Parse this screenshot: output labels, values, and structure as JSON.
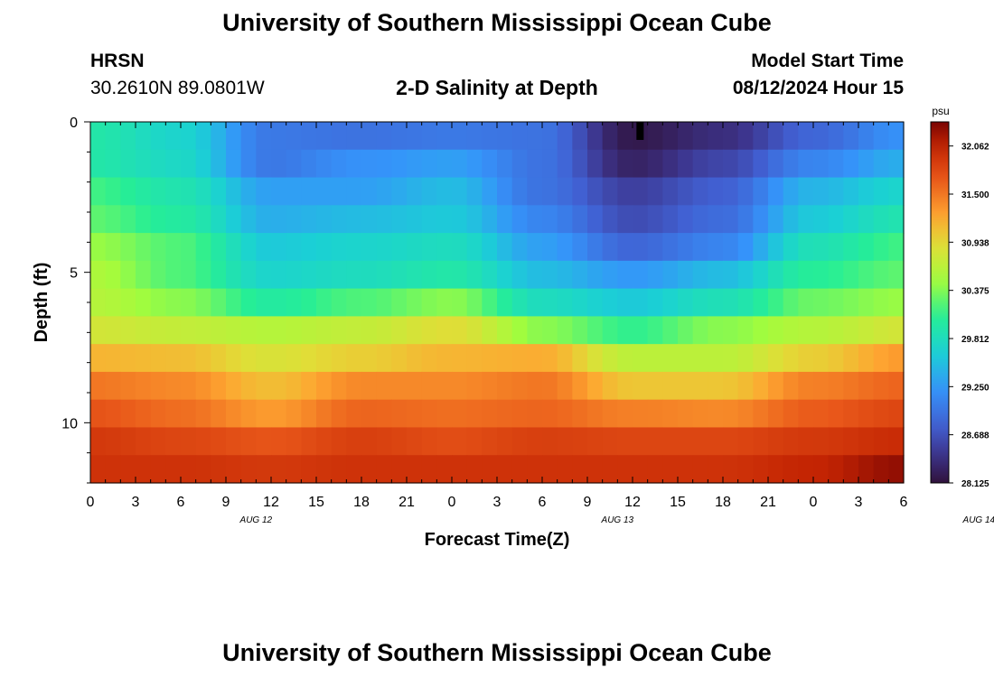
{
  "header": {
    "title": "University of Southern Mississippi Ocean Cube",
    "station": "HRSN",
    "coords": "30.2610N  89.0801W",
    "subtitle": "2-D Salinity at Depth",
    "run_label": "Model Start Time",
    "run_time": "08/12/2024 Hour 15"
  },
  "footer": {
    "title": "University of Southern Mississippi Ocean Cube"
  },
  "chart_data": {
    "type": "heatmap",
    "title": "2-D Salinity at Depth",
    "xlabel": "Forecast Time(Z)",
    "ylabel": "Depth (ft)",
    "x_tick_labels": [
      "0",
      "3",
      "6",
      "9",
      "12",
      "15",
      "18",
      "21",
      "0",
      "3",
      "6",
      "9",
      "12",
      "15",
      "18",
      "21",
      "0",
      "3",
      "6"
    ],
    "date_labels": [
      {
        "label": "AUG 12",
        "hour_index": 11
      },
      {
        "label": "AUG 13",
        "hour_index": 35
      },
      {
        "label": "AUG 14",
        "hour_index": 59
      }
    ],
    "x_hours": {
      "start": 0,
      "end": 54,
      "step": 1
    },
    "ylim": [
      0,
      12
    ],
    "y_ticks": [
      0,
      5,
      10
    ],
    "depth_layers_ft": [
      0.5,
      1.5,
      2.5,
      3.5,
      4.5,
      5.5,
      6.5,
      7.5,
      8.5,
      9.5,
      10.5,
      11.5
    ],
    "colorbar": {
      "unit": "psu",
      "min": 28.125,
      "max": 32.344,
      "tick_labels": [
        "32.062",
        "31.500",
        "30.938",
        "30.375",
        "29.812",
        "29.250",
        "28.688",
        "28.125"
      ],
      "tick_values": [
        32.062,
        31.5,
        30.938,
        30.375,
        29.812,
        29.25,
        28.688,
        28.125
      ]
    },
    "marker": {
      "hour": 36.5,
      "depth_ft": 0.3
    },
    "salinity_keyframes": {
      "hours": [
        0,
        6,
        12,
        18,
        24,
        30,
        36,
        42,
        48,
        54
      ],
      "layers": [
        [
          29.95,
          29.7,
          29.0,
          28.95,
          29.0,
          28.95,
          28.2,
          28.4,
          28.85,
          29.2
        ],
        [
          29.95,
          29.75,
          29.0,
          29.2,
          29.3,
          28.95,
          28.3,
          28.6,
          29.1,
          29.4
        ],
        [
          30.15,
          29.9,
          29.3,
          29.3,
          29.5,
          28.95,
          28.55,
          28.8,
          29.45,
          29.7
        ],
        [
          30.25,
          30.0,
          29.4,
          29.5,
          29.6,
          29.1,
          28.65,
          28.9,
          29.6,
          29.9
        ],
        [
          30.45,
          30.2,
          29.6,
          29.7,
          29.8,
          29.3,
          28.85,
          29.1,
          29.85,
          30.15
        ],
        [
          30.55,
          30.2,
          29.7,
          29.8,
          29.95,
          29.5,
          29.25,
          29.5,
          30.05,
          30.25
        ],
        [
          30.6,
          30.4,
          30.0,
          30.2,
          30.4,
          29.8,
          29.6,
          29.85,
          30.3,
          30.45
        ],
        [
          30.8,
          30.7,
          30.6,
          30.7,
          30.9,
          30.4,
          30.1,
          30.4,
          30.6,
          30.8
        ],
        [
          31.15,
          31.1,
          30.85,
          31.0,
          31.15,
          31.2,
          30.65,
          30.65,
          31.0,
          31.3
        ],
        [
          31.5,
          31.4,
          31.1,
          31.4,
          31.4,
          31.5,
          31.05,
          31.05,
          31.45,
          31.6
        ],
        [
          31.7,
          31.55,
          31.3,
          31.6,
          31.55,
          31.6,
          31.45,
          31.4,
          31.65,
          31.8
        ],
        [
          31.9,
          31.8,
          31.7,
          31.85,
          31.75,
          31.85,
          31.8,
          31.8,
          31.9,
          32.0
        ],
        [
          31.95,
          31.95,
          31.9,
          31.95,
          31.95,
          31.95,
          31.95,
          31.95,
          32.05,
          32.25
        ]
      ]
    }
  }
}
